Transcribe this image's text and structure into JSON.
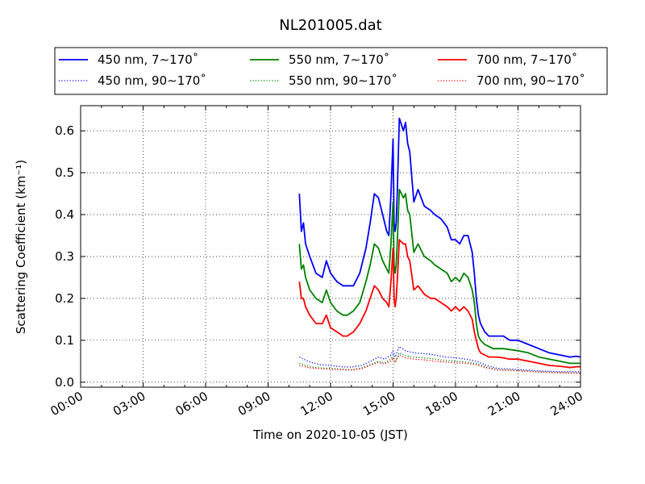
{
  "chart_data": {
    "type": "line",
    "title": "NL201005.dat",
    "xlabel": "Time on 2020-10-05 (JST)",
    "ylabel": "Scattering Coefficient (km⁻¹)",
    "x_unit": "hour",
    "xlim": [
      0,
      24
    ],
    "ylim": [
      -0.012,
      0.66
    ],
    "x_ticks": [
      0,
      3,
      6,
      9,
      12,
      15,
      18,
      21,
      24
    ],
    "x_tick_labels": [
      "00:00",
      "03:00",
      "06:00",
      "09:00",
      "12:00",
      "15:00",
      "18:00",
      "21:00",
      "24:00"
    ],
    "y_ticks": [
      0.0,
      0.1,
      0.2,
      0.3,
      0.4,
      0.5,
      0.6
    ],
    "y_tick_labels": [
      "0.0",
      "0.1",
      "0.2",
      "0.3",
      "0.4",
      "0.5",
      "0.6"
    ],
    "grid": true,
    "legend_position": "top",
    "legend_columns": 3,
    "series": [
      {
        "name": "450 nm, 7∼170˚",
        "color": "#0000ff",
        "style": "solid",
        "x": [
          10.5,
          10.6,
          10.7,
          10.8,
          11.0,
          11.3,
          11.6,
          11.8,
          12.0,
          12.3,
          12.6,
          12.8,
          13.1,
          13.4,
          13.7,
          13.9,
          14.1,
          14.3,
          14.5,
          14.7,
          14.8,
          14.9,
          15.0,
          15.05,
          15.1,
          15.15,
          15.2,
          15.3,
          15.5,
          15.6,
          15.7,
          15.8,
          16.0,
          16.2,
          16.5,
          16.8,
          17.0,
          17.3,
          17.6,
          17.8,
          18.0,
          18.2,
          18.4,
          18.6,
          18.8,
          18.9,
          19.0,
          19.1,
          19.2,
          19.4,
          19.6,
          19.8,
          20.0,
          20.3,
          20.6,
          21.0,
          21.5,
          22.0,
          22.5,
          23.0,
          23.5,
          23.8,
          24.0
        ],
        "y": [
          0.45,
          0.36,
          0.38,
          0.33,
          0.3,
          0.26,
          0.25,
          0.29,
          0.26,
          0.24,
          0.23,
          0.23,
          0.23,
          0.26,
          0.32,
          0.38,
          0.45,
          0.44,
          0.4,
          0.36,
          0.35,
          0.45,
          0.58,
          0.38,
          0.36,
          0.38,
          0.45,
          0.63,
          0.6,
          0.62,
          0.57,
          0.55,
          0.43,
          0.46,
          0.42,
          0.41,
          0.4,
          0.39,
          0.37,
          0.34,
          0.34,
          0.33,
          0.35,
          0.35,
          0.31,
          0.26,
          0.2,
          0.16,
          0.14,
          0.12,
          0.11,
          0.11,
          0.11,
          0.11,
          0.1,
          0.1,
          0.09,
          0.08,
          0.07,
          0.065,
          0.06,
          0.062,
          0.06
        ]
      },
      {
        "name": "450 nm, 90∼170˚",
        "color": "#0000ff",
        "style": "dotted",
        "x": [
          10.5,
          11.0,
          11.5,
          12.0,
          12.5,
          13.0,
          13.5,
          14.0,
          14.3,
          14.6,
          14.9,
          15.0,
          15.1,
          15.3,
          15.6,
          16.0,
          16.5,
          17.0,
          17.5,
          18.0,
          18.5,
          19.0,
          19.5,
          20.0,
          21.0,
          22.0,
          23.0,
          24.0
        ],
        "y": [
          0.06,
          0.048,
          0.042,
          0.04,
          0.037,
          0.036,
          0.04,
          0.052,
          0.06,
          0.055,
          0.065,
          0.075,
          0.06,
          0.085,
          0.075,
          0.07,
          0.068,
          0.065,
          0.06,
          0.058,
          0.055,
          0.05,
          0.04,
          0.033,
          0.03,
          0.027,
          0.025,
          0.025
        ]
      },
      {
        "name": "550 nm, 7∼170˚",
        "color": "#008000",
        "style": "solid",
        "x": [
          10.5,
          10.6,
          10.7,
          10.8,
          11.0,
          11.3,
          11.6,
          11.8,
          12.0,
          12.3,
          12.6,
          12.8,
          13.1,
          13.4,
          13.7,
          13.9,
          14.1,
          14.3,
          14.5,
          14.7,
          14.8,
          14.9,
          15.0,
          15.05,
          15.1,
          15.15,
          15.2,
          15.3,
          15.5,
          15.6,
          15.7,
          15.8,
          16.0,
          16.2,
          16.5,
          16.8,
          17.0,
          17.3,
          17.6,
          17.8,
          18.0,
          18.2,
          18.4,
          18.6,
          18.8,
          18.9,
          19.0,
          19.1,
          19.2,
          19.4,
          19.6,
          19.8,
          20.0,
          20.3,
          20.6,
          21.0,
          21.5,
          22.0,
          22.5,
          23.0,
          23.5,
          23.8,
          24.0
        ],
        "y": [
          0.33,
          0.27,
          0.28,
          0.25,
          0.22,
          0.2,
          0.19,
          0.22,
          0.19,
          0.17,
          0.16,
          0.16,
          0.17,
          0.19,
          0.24,
          0.28,
          0.33,
          0.32,
          0.29,
          0.27,
          0.26,
          0.33,
          0.43,
          0.28,
          0.26,
          0.28,
          0.33,
          0.46,
          0.44,
          0.45,
          0.41,
          0.4,
          0.31,
          0.33,
          0.3,
          0.29,
          0.28,
          0.27,
          0.26,
          0.24,
          0.25,
          0.24,
          0.26,
          0.25,
          0.22,
          0.19,
          0.14,
          0.11,
          0.1,
          0.09,
          0.085,
          0.08,
          0.08,
          0.08,
          0.078,
          0.075,
          0.07,
          0.06,
          0.055,
          0.05,
          0.045,
          0.045,
          0.045
        ]
      },
      {
        "name": "550 nm, 90∼170˚",
        "color": "#008000",
        "style": "dotted",
        "x": [
          10.5,
          11.0,
          11.5,
          12.0,
          12.5,
          13.0,
          13.5,
          14.0,
          14.3,
          14.6,
          14.9,
          15.0,
          15.1,
          15.3,
          15.6,
          16.0,
          16.5,
          17.0,
          17.5,
          18.0,
          18.5,
          19.0,
          19.5,
          20.0,
          21.0,
          22.0,
          23.0,
          24.0
        ],
        "y": [
          0.045,
          0.037,
          0.034,
          0.033,
          0.031,
          0.03,
          0.034,
          0.044,
          0.05,
          0.046,
          0.055,
          0.063,
          0.05,
          0.07,
          0.063,
          0.06,
          0.058,
          0.055,
          0.052,
          0.05,
          0.048,
          0.044,
          0.036,
          0.03,
          0.028,
          0.025,
          0.023,
          0.022
        ]
      },
      {
        "name": "700 nm, 7∼170˚",
        "color": "#ff0000",
        "style": "solid",
        "x": [
          10.5,
          10.6,
          10.7,
          10.8,
          11.0,
          11.3,
          11.6,
          11.8,
          12.0,
          12.3,
          12.6,
          12.8,
          13.1,
          13.4,
          13.7,
          13.9,
          14.1,
          14.3,
          14.5,
          14.7,
          14.8,
          14.9,
          15.0,
          15.05,
          15.1,
          15.15,
          15.2,
          15.3,
          15.5,
          15.6,
          15.7,
          15.8,
          16.0,
          16.2,
          16.5,
          16.8,
          17.0,
          17.3,
          17.6,
          17.8,
          18.0,
          18.2,
          18.4,
          18.6,
          18.8,
          18.9,
          19.0,
          19.1,
          19.2,
          19.4,
          19.6,
          19.8,
          20.0,
          20.3,
          20.6,
          21.0,
          21.5,
          22.0,
          22.5,
          23.0,
          23.5,
          23.8,
          24.0
        ],
        "y": [
          0.24,
          0.2,
          0.2,
          0.18,
          0.16,
          0.14,
          0.14,
          0.16,
          0.13,
          0.12,
          0.11,
          0.11,
          0.12,
          0.14,
          0.17,
          0.2,
          0.23,
          0.22,
          0.2,
          0.19,
          0.18,
          0.24,
          0.32,
          0.2,
          0.18,
          0.2,
          0.24,
          0.34,
          0.33,
          0.33,
          0.3,
          0.29,
          0.22,
          0.23,
          0.21,
          0.2,
          0.2,
          0.19,
          0.18,
          0.17,
          0.18,
          0.17,
          0.18,
          0.17,
          0.15,
          0.12,
          0.1,
          0.08,
          0.07,
          0.065,
          0.06,
          0.06,
          0.06,
          0.058,
          0.055,
          0.055,
          0.05,
          0.045,
          0.04,
          0.038,
          0.035,
          0.037,
          0.037
        ]
      },
      {
        "name": "700 nm, 90∼170˚",
        "color": "#ff0000",
        "style": "dotted",
        "x": [
          10.5,
          11.0,
          11.5,
          12.0,
          12.5,
          13.0,
          13.5,
          14.0,
          14.3,
          14.6,
          14.9,
          15.0,
          15.1,
          15.3,
          15.6,
          16.0,
          16.5,
          17.0,
          17.5,
          18.0,
          18.5,
          19.0,
          19.5,
          20.0,
          21.0,
          22.0,
          23.0,
          24.0
        ],
        "y": [
          0.04,
          0.034,
          0.032,
          0.031,
          0.03,
          0.029,
          0.032,
          0.042,
          0.047,
          0.043,
          0.05,
          0.058,
          0.047,
          0.065,
          0.058,
          0.055,
          0.053,
          0.05,
          0.048,
          0.046,
          0.045,
          0.042,
          0.034,
          0.029,
          0.027,
          0.024,
          0.022,
          0.021
        ]
      }
    ]
  }
}
